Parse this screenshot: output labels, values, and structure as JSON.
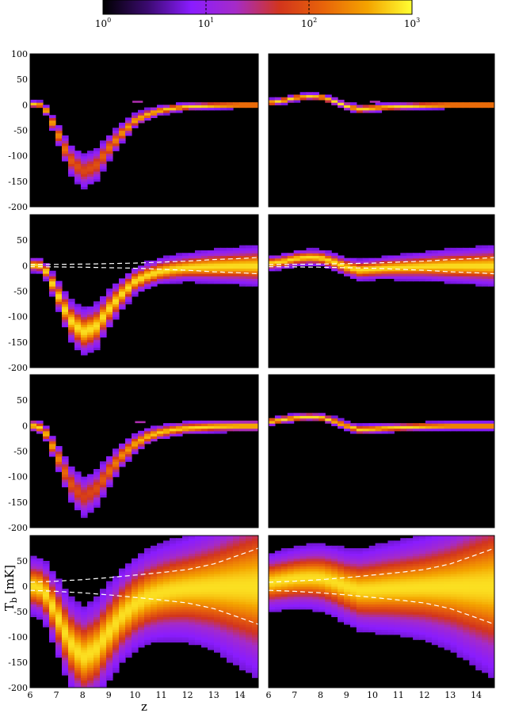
{
  "colorbar": {
    "scale": "log",
    "min": 1,
    "max": 1000,
    "ticks": [
      {
        "base": "10",
        "exp": "0",
        "value": 1
      },
      {
        "base": "10",
        "exp": "1",
        "value": 10
      },
      {
        "base": "10",
        "exp": "2",
        "value": 100
      },
      {
        "base": "10",
        "exp": "3",
        "value": 1000
      }
    ],
    "colormap": [
      "#000000",
      "#3a0a6e",
      "#8a1cff",
      "#a52bc8",
      "#d2351c",
      "#e8640a",
      "#f4a400",
      "#ffff33"
    ]
  },
  "axes": {
    "xlabel": "z",
    "ylabel_main": "T",
    "ylabel_sub": "b",
    "ylabel_unit": "[mK]",
    "xlim": [
      6,
      14.7
    ],
    "ylim": [
      -200,
      100
    ],
    "xticks": [
      "6",
      "7",
      "8",
      "9",
      "10",
      "11",
      "12",
      "13",
      "14"
    ],
    "yticks": [
      "100",
      "50",
      "0",
      "-50",
      "-100",
      "-150",
      "-200"
    ]
  },
  "chart_data": [
    {
      "type": "heatmap",
      "row": 1,
      "column": 1,
      "center_curve": "left_a",
      "spread": 3,
      "dashed_envelope": false,
      "blips": [
        [
          10.1,
          6
        ]
      ]
    },
    {
      "type": "heatmap",
      "row": 1,
      "column": 2,
      "center_curve": "right_a",
      "spread": 3,
      "dashed_envelope": false,
      "blips": [
        [
          10.1,
          6
        ]
      ]
    },
    {
      "type": "heatmap",
      "row": 2,
      "column": 1,
      "center_curve": "left_a",
      "spread": 4.5,
      "dashed_envelope": true,
      "envelope": "noise_small"
    },
    {
      "type": "heatmap",
      "row": 2,
      "column": 2,
      "center_curve": "right_a",
      "spread": 4.5,
      "dashed_envelope": true,
      "envelope": "noise_small"
    },
    {
      "type": "heatmap",
      "row": 3,
      "column": 1,
      "center_curve": "left_b",
      "spread": 5,
      "dashed_envelope": false,
      "blips": [
        [
          10.2,
          7
        ]
      ]
    },
    {
      "type": "heatmap",
      "row": 3,
      "column": 2,
      "center_curve": "right_b",
      "spread": 3.5,
      "dashed_envelope": false
    },
    {
      "type": "heatmap",
      "row": 4,
      "column": 1,
      "center_curve": "left_b",
      "spread": 18,
      "dashed_envelope": true,
      "envelope": "noise_large"
    },
    {
      "type": "heatmap",
      "row": 4,
      "column": 2,
      "center_curve": "right_b",
      "spread": 18,
      "dashed_envelope": true,
      "envelope": "noise_large"
    }
  ],
  "curves": {
    "left_a": {
      "x": [
        6,
        6.5,
        7,
        7.5,
        8,
        8.5,
        9,
        9.5,
        10,
        10.5,
        11,
        11.5,
        12,
        13,
        14,
        14.7
      ],
      "y": [
        2,
        0,
        -50,
        -105,
        -130,
        -120,
        -85,
        -55,
        -30,
        -18,
        -10,
        -6,
        -3,
        -1,
        0,
        0
      ]
    },
    "right_a": {
      "x": [
        6,
        6.5,
        7,
        7.5,
        8,
        8.5,
        9,
        9.5,
        10,
        10.5,
        11,
        12,
        13,
        14,
        14.7
      ],
      "y": [
        5,
        8,
        14,
        17,
        16,
        8,
        -2,
        -8,
        -6,
        -4,
        -3,
        -1,
        0,
        0,
        0
      ]
    },
    "left_b": {
      "x": [
        6,
        6.5,
        7,
        7.5,
        8,
        8.5,
        9,
        9.5,
        10,
        10.5,
        11,
        11.5,
        12,
        13,
        14,
        14.7
      ],
      "y": [
        2,
        -5,
        -55,
        -110,
        -140,
        -125,
        -90,
        -58,
        -35,
        -20,
        -12,
        -7,
        -4,
        -1,
        0,
        0
      ]
    },
    "right_b": {
      "x": [
        6,
        6.5,
        7,
        7.5,
        8,
        8.5,
        9,
        9.5,
        10,
        10.5,
        11,
        12,
        13,
        14,
        14.7
      ],
      "y": [
        8,
        12,
        16,
        18,
        17,
        10,
        0,
        -7,
        -6,
        -4,
        -3,
        -1,
        0,
        0,
        0
      ]
    },
    "noise_small": {
      "x": [
        6,
        8,
        10,
        11,
        12,
        13,
        14,
        14.7
      ],
      "y": [
        2,
        3,
        5,
        7,
        9,
        12,
        14,
        16
      ]
    },
    "noise_large": {
      "x": [
        6,
        7,
        8,
        9,
        10,
        11,
        12,
        13,
        14,
        14.7
      ],
      "y": [
        8,
        10,
        13,
        17,
        22,
        27,
        33,
        44,
        62,
        75
      ]
    }
  }
}
